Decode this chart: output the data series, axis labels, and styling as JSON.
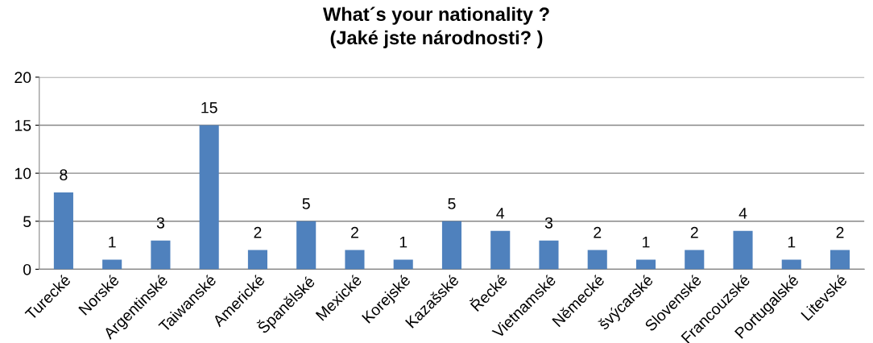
{
  "chart_data": {
    "type": "bar",
    "title": "What´s your nationality ?\n(Jaké jste národnosti? )",
    "categories": [
      "Turecké",
      "Norské",
      "Argentinské",
      "Taiwanské",
      "Americké",
      "Španělské",
      "Mexické",
      "Korejské",
      "Kazašské",
      "Řecké",
      "Vietnamské",
      "Německé",
      "švýcarské",
      "Slovenské",
      "Francouzské",
      "Portugalské",
      "Litevské"
    ],
    "values": [
      8,
      1,
      3,
      15,
      2,
      5,
      2,
      1,
      5,
      4,
      3,
      2,
      1,
      2,
      4,
      1,
      2
    ],
    "color": "#4f81bd",
    "ylim": [
      0,
      20
    ],
    "yticks": [
      0,
      5,
      10,
      15,
      20
    ],
    "grid": "y",
    "data_labels": true,
    "legend": false
  }
}
